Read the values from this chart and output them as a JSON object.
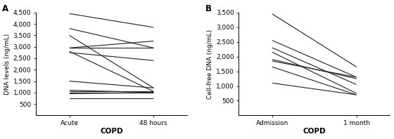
{
  "panel_A": {
    "title": "A",
    "xlabel": "COPD",
    "ylabel": "DNA levels (ng/mL)",
    "xtick_labels": [
      "Acute",
      "48 hours"
    ],
    "ylim": [
      0,
      4500
    ],
    "yticks": [
      500,
      1000,
      1500,
      2000,
      2500,
      3000,
      3500,
      4000,
      4500
    ],
    "lines": [
      [
        4450,
        3850
      ],
      [
        3800,
        2950
      ],
      [
        3500,
        1200
      ],
      [
        2950,
        3250
      ],
      [
        2950,
        2950
      ],
      [
        2800,
        1050
      ],
      [
        2750,
        2400
      ],
      [
        1500,
        1200
      ],
      [
        1100,
        1000
      ],
      [
        1050,
        1050
      ],
      [
        1000,
        1000
      ],
      [
        950,
        1000
      ],
      [
        750,
        750
      ]
    ]
  },
  "panel_B": {
    "title": "B",
    "xlabel": "COPD",
    "ylabel": "Cell-free DNA (ng/mL)",
    "xtick_labels": [
      "Admission",
      "1 month"
    ],
    "ylim": [
      0,
      3500
    ],
    "yticks": [
      500,
      1000,
      1500,
      2000,
      2500,
      3000,
      3500
    ],
    "lines": [
      [
        3450,
        1650
      ],
      [
        2550,
        1300
      ],
      [
        2300,
        1050
      ],
      [
        2150,
        750
      ],
      [
        1900,
        1250
      ],
      [
        1850,
        1300
      ],
      [
        1650,
        700
      ],
      [
        1100,
        700
      ]
    ]
  },
  "line_color": "#2a2a2a",
  "line_width": 0.85,
  "font_size": 6.5,
  "label_fontsize": 6.5,
  "xlabel_fontsize": 7.5,
  "title_fontsize": 8.5
}
